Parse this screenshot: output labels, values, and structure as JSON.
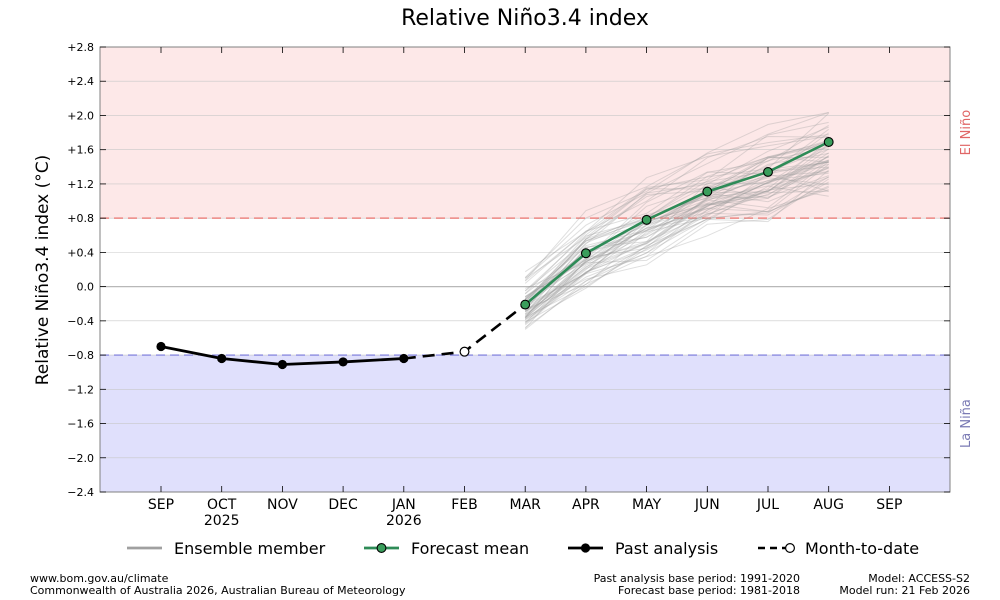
{
  "colors": {
    "el_nino_band": "#fde8e8",
    "la_nina_band": "#e0e0fc",
    "el_nino_line": "#e8716b",
    "la_nina_line": "#7676d8",
    "el_nino_text": "#e06666",
    "la_nina_text": "#7a7ab4",
    "forecast": "#2e8b57",
    "forecast_marker": "#3a9e5c",
    "ensemble": "#9e9e9e",
    "past": "#000000"
  },
  "chart_data": {
    "type": "line",
    "title": "Relative Niño3.4 index",
    "ylabel": "Relative Niño3.4 index (°C)",
    "ylim": [
      -2.4,
      2.8
    ],
    "yticks": [
      {
        "value": 2.8,
        "label": "+2.8"
      },
      {
        "value": 2.4,
        "label": "+2.4"
      },
      {
        "value": 2.0,
        "label": "+2.0"
      },
      {
        "value": 1.6,
        "label": "+1.6"
      },
      {
        "value": 1.2,
        "label": "+1.2"
      },
      {
        "value": 0.8,
        "label": "+0.8"
      },
      {
        "value": 0.4,
        "label": "+0.4"
      },
      {
        "value": 0.0,
        "label": "0.0"
      },
      {
        "value": -0.4,
        "label": "−0.4"
      },
      {
        "value": -0.8,
        "label": "−0.8"
      },
      {
        "value": -1.2,
        "label": "−1.2"
      },
      {
        "value": -1.6,
        "label": "−1.6"
      },
      {
        "value": -2.0,
        "label": "−2.0"
      },
      {
        "value": -2.4,
        "label": "−2.4"
      }
    ],
    "months": [
      "SEP",
      "OCT",
      "NOV",
      "DEC",
      "JAN",
      "FEB",
      "MAR",
      "APR",
      "MAY",
      "JUN",
      "JUL",
      "AUG",
      "SEP"
    ],
    "year_labels": [
      {
        "month_index": 1,
        "text": "2025"
      },
      {
        "month_index": 4,
        "text": "2026"
      }
    ],
    "thresholds": {
      "el_nino": 0.8,
      "la_nina": -0.8
    },
    "region_labels": {
      "el_nino": "El Niño",
      "la_nina": "La Niña"
    },
    "past_analysis": {
      "name": "Past analysis",
      "x": [
        0,
        1,
        2,
        3,
        4
      ],
      "values": [
        -0.7,
        -0.84,
        -0.91,
        -0.88,
        -0.84
      ]
    },
    "month_to_date": {
      "name": "Month-to-date",
      "x": 5,
      "value": -0.76
    },
    "forecast_mean": {
      "name": "Forecast mean",
      "x": [
        6,
        7,
        8,
        9,
        10,
        11
      ],
      "values": [
        -0.21,
        0.39,
        0.78,
        1.11,
        1.34,
        1.69
      ]
    },
    "ensemble": {
      "name": "Ensemble member",
      "x": [
        6,
        7,
        8,
        9,
        10,
        11
      ],
      "lower": [
        -0.58,
        -0.12,
        0.22,
        0.56,
        0.68,
        0.92
      ],
      "upper": [
        0.25,
        0.95,
        1.38,
        1.68,
        2.02,
        2.3
      ]
    },
    "legend": [
      {
        "key": "ensemble",
        "label": "Ensemble member"
      },
      {
        "key": "forecast",
        "label": "Forecast mean"
      },
      {
        "key": "past",
        "label": "Past analysis"
      },
      {
        "key": "mtd",
        "label": "Month-to-date"
      }
    ]
  },
  "footer": {
    "left_line1": "www.bom.gov.au/climate",
    "left_line2": "Commonwealth of Australia 2026, Australian Bureau of Meteorology",
    "mid_line1": "Past analysis base period: 1991-2020",
    "mid_line2": "Forecast base period: 1981-2018",
    "right_line1": "Model: ACCESS-S2",
    "right_line2": "Model run: 21 Feb 2026"
  }
}
